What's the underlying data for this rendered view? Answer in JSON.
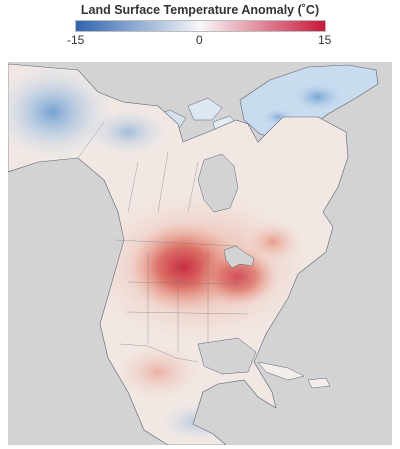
{
  "legend": {
    "title": "Land Surface Temperature Anomaly (˚C)",
    "ticks": {
      "min": "-15",
      "mid": "0",
      "max": "15"
    },
    "range": [
      -15,
      15
    ],
    "colors": {
      "cold": "#2f64b0",
      "neutral": "#f7f7f7",
      "warm": "#c8173a"
    }
  },
  "map": {
    "ocean_color": "#d3d3d3",
    "region": "North America",
    "pattern": "Warm anomaly over central US and Canadian prairies/Great Lakes; cold anomaly over Alaska, Arctic islands and Greenland"
  }
}
